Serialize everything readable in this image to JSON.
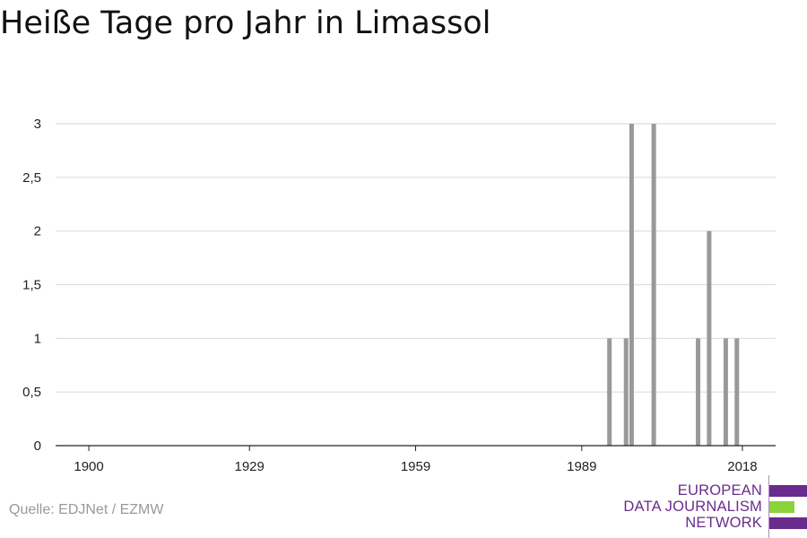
{
  "title": "Heiße Tage pro Jahr in Limassol",
  "source": "Quelle: EDJNet / EZMW",
  "logo": {
    "line1": "EUROPEAN",
    "line2": "DATA JOURNALISM",
    "line3": "NETWORK",
    "colors": {
      "purple": "#6a2c8c",
      "green": "#8cd23a"
    }
  },
  "chart_data": {
    "type": "bar",
    "title": "Heiße Tage pro Jahr in Limassol",
    "xlabel": "",
    "ylabel": "",
    "xlim": [
      1894,
      2024
    ],
    "ylim": [
      0,
      3
    ],
    "yticks": [
      0,
      0.5,
      1,
      1.5,
      2,
      2.5,
      3
    ],
    "ytick_labels": [
      "0",
      "0,5",
      "1",
      "1,5",
      "2",
      "2,5",
      "3"
    ],
    "xticks": [
      1900,
      1929,
      1959,
      1989,
      2018
    ],
    "xtick_labels": [
      "1900",
      "1929",
      "1959",
      "1989",
      "2018"
    ],
    "grid": true,
    "bar_color": "#999999",
    "x": [
      1994,
      1997,
      1998,
      2002,
      2010,
      2012,
      2015,
      2017
    ],
    "values": [
      1,
      1,
      3,
      3,
      1,
      2,
      1,
      1
    ]
  }
}
